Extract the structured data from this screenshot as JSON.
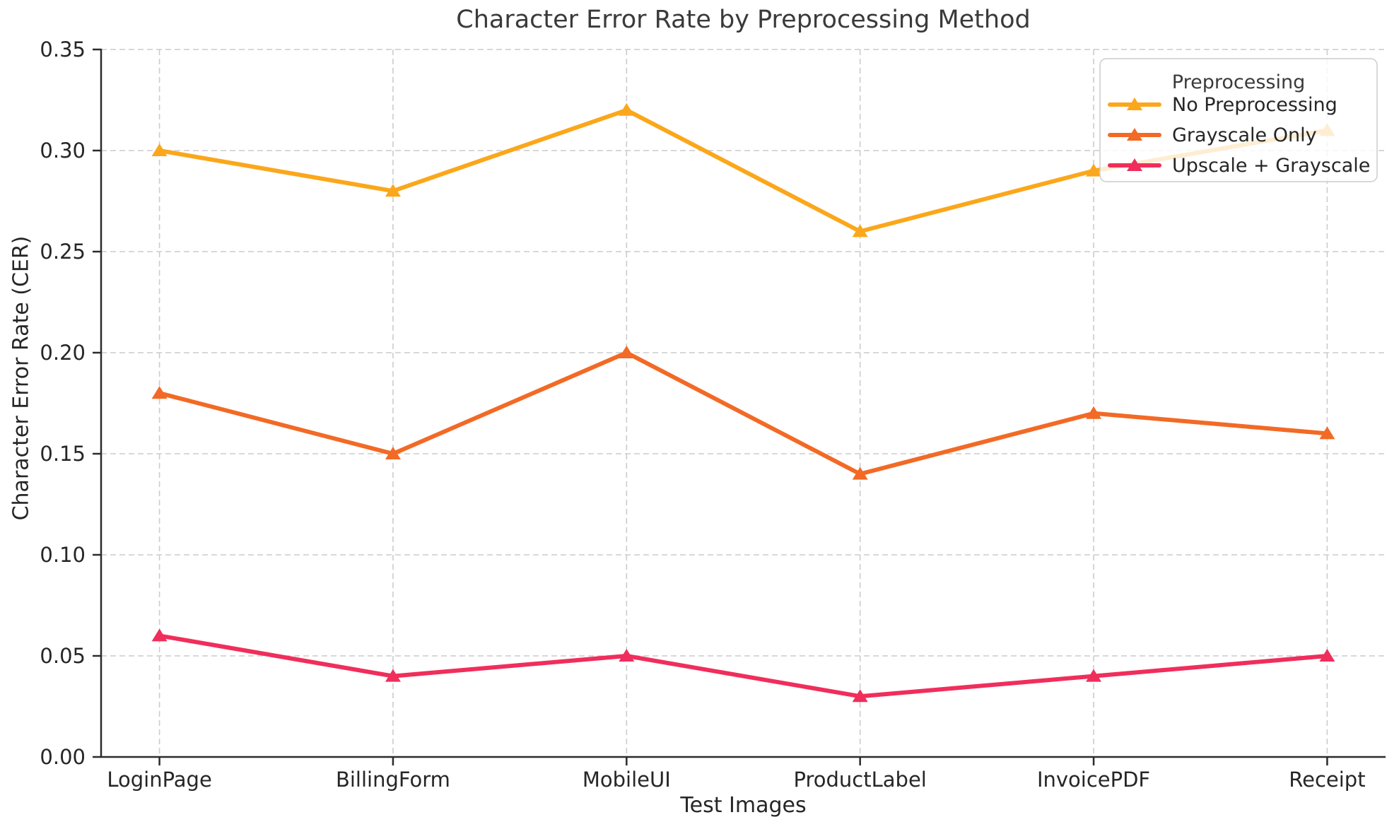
{
  "chart_data": {
    "type": "line",
    "title": "Character Error Rate by Preprocessing Method",
    "xlabel": "Test Images",
    "ylabel": "Character Error Rate (CER)",
    "categories": [
      "LoginPage",
      "BillingForm",
      "MobileUI",
      "ProductLabel",
      "InvoicePDF",
      "Receipt"
    ],
    "series": [
      {
        "name": "No Preprocessing",
        "color": "#FBA71B",
        "values": [
          0.3,
          0.28,
          0.32,
          0.26,
          0.29,
          0.31
        ]
      },
      {
        "name": "Grayscale Only",
        "color": "#F26A25",
        "values": [
          0.18,
          0.15,
          0.2,
          0.14,
          0.17,
          0.16
        ]
      },
      {
        "name": "Upscale + Grayscale",
        "color": "#F02E5B",
        "values": [
          0.06,
          0.04,
          0.05,
          0.03,
          0.04,
          0.05
        ]
      }
    ],
    "ylim": [
      0,
      0.35
    ],
    "yticks": [
      0.0,
      0.05,
      0.1,
      0.15,
      0.2,
      0.25,
      0.3,
      0.35
    ],
    "ytick_labels": [
      "0.00",
      "0.05",
      "0.10",
      "0.15",
      "0.20",
      "0.25",
      "0.30",
      "0.35"
    ],
    "marker": "triangle-up",
    "grid": true,
    "legend": {
      "title": "Preprocessing",
      "position": "upper right"
    },
    "style": {
      "grid_color": "#cccccc",
      "spine_color": "#2b2b2b",
      "title_color": "#3a3a3a",
      "tick_color": "#262626",
      "legend_fill": "rgba(255,255,255,0.8)",
      "legend_border": "#cccccc"
    }
  }
}
